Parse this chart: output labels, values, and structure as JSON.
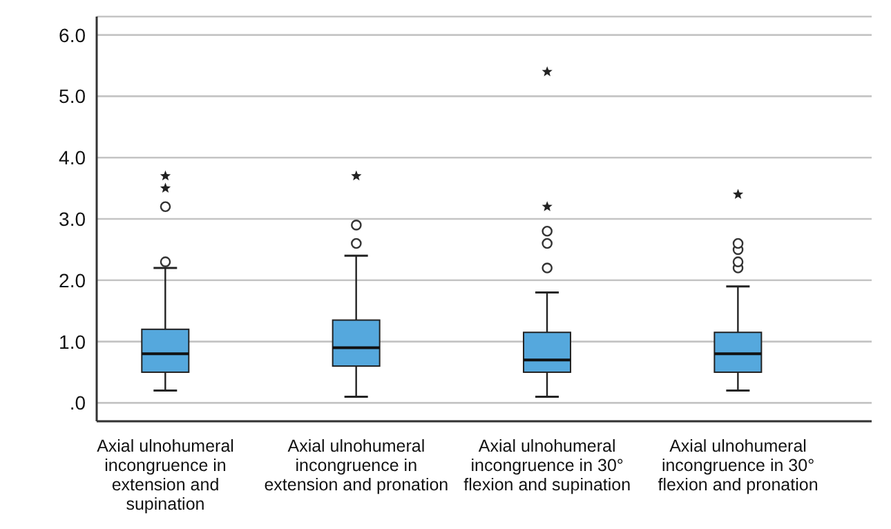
{
  "chart_data": {
    "type": "box",
    "categories": [
      "Axial ulnohumeral incongruence in extension and supination",
      "Axial ulnohumeral incongruence in extension and pronation",
      "Axial ulnohumeral incongruence in 30° flexion and supination",
      "Axial ulnohumeral incongruence in 30° flexion and pronation"
    ],
    "color": "#55a8dd",
    "boxes": [
      {
        "low": 0.2,
        "q1": 0.5,
        "median": 0.8,
        "q3": 1.2,
        "high": 2.2,
        "outliers": [
          2.3,
          3.2,
          3.5,
          3.7
        ]
      },
      {
        "low": 0.1,
        "q1": 0.6,
        "median": 0.9,
        "q3": 1.35,
        "high": 2.4,
        "outliers": [
          2.6,
          2.9,
          3.7
        ]
      },
      {
        "low": 0.1,
        "q1": 0.5,
        "median": 0.7,
        "q3": 1.15,
        "high": 1.8,
        "outliers": [
          2.2,
          2.6,
          2.8,
          3.2,
          5.4
        ]
      },
      {
        "low": 0.2,
        "q1": 0.5,
        "median": 0.8,
        "q3": 1.15,
        "high": 1.9,
        "outliers": [
          2.2,
          2.3,
          2.5,
          2.6,
          3.4
        ]
      }
    ],
    "ylim": [
      -0.3,
      6.3
    ],
    "yticks": [
      {
        "value": 0,
        "label": ".0"
      },
      {
        "value": 1,
        "label": "1.0"
      },
      {
        "value": 2,
        "label": "2.0"
      },
      {
        "value": 3,
        "label": "3.0"
      },
      {
        "value": 4,
        "label": "4.0"
      },
      {
        "value": 5,
        "label": "5.0"
      },
      {
        "value": 6,
        "label": "6.0"
      }
    ],
    "grid": "y"
  }
}
